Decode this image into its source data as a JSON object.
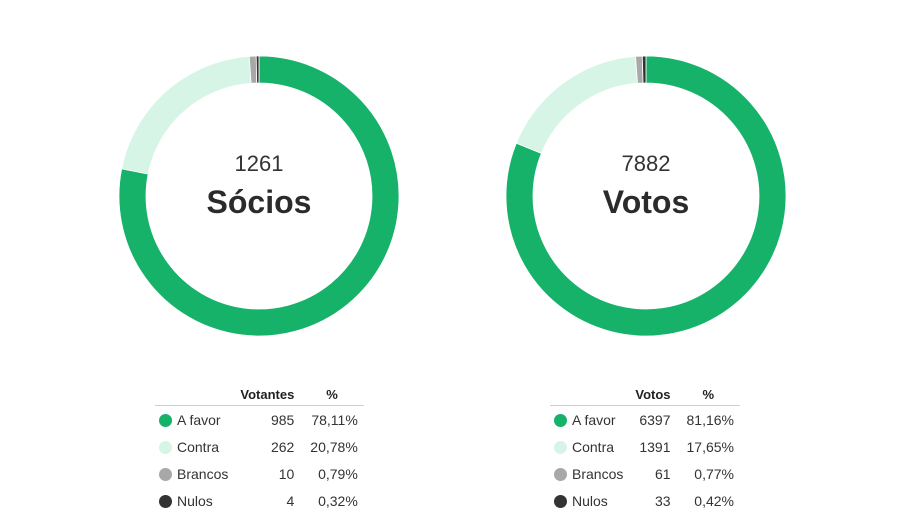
{
  "colors": {
    "a_favor": "#17b26a",
    "contra": "#d6f5e6",
    "brancos": "#a8a8a8",
    "nulos": "#333333"
  },
  "chart_data": [
    {
      "type": "pie",
      "center_value": "1261",
      "center_label": "Sócios",
      "count_header": "Votantes",
      "pct_header": "%",
      "categories": [
        "A favor",
        "Contra",
        "Brancos",
        "Nulos"
      ],
      "values": [
        985,
        262,
        10,
        4
      ],
      "percent_labels": [
        "78,11%",
        "20,78%",
        "0,79%",
        "0,32%"
      ]
    },
    {
      "type": "pie",
      "center_value": "7882",
      "center_label": "Votos",
      "count_header": "Votos",
      "pct_header": "%",
      "categories": [
        "A favor",
        "Contra",
        "Brancos",
        "Nulos"
      ],
      "values": [
        6397,
        1391,
        61,
        33
      ],
      "percent_labels": [
        "81,16%",
        "17,65%",
        "0,77%",
        "0,42%"
      ]
    }
  ]
}
